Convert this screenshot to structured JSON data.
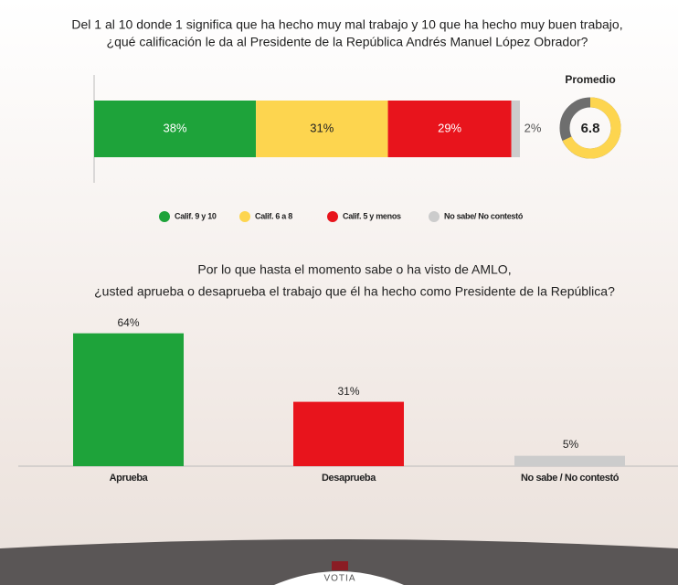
{
  "chart_data": [
    {
      "type": "stacked_bar",
      "title": [
        "Del 1 al 10 donde 1 significa que ha hecho muy mal trabajo y 10 que ha hecho muy buen trabajo,",
        "¿qué calificación le da al Presidente de la República Andrés Manuel López Obrador?"
      ],
      "categories": [
        null
      ],
      "xlim": [
        0,
        100
      ],
      "series": [
        {
          "name": "Calif. 9 y 10",
          "color": "#1ea33a",
          "values": [
            38
          ],
          "value_labels": [
            "38%"
          ]
        },
        {
          "name": "Calif. 6 a 8",
          "color": "#fdd54f",
          "values": [
            31
          ],
          "value_labels": [
            "31%"
          ]
        },
        {
          "name": "Calif. 5 y menos",
          "color": "#e8141c",
          "values": [
            29
          ],
          "value_labels": [
            "29%"
          ]
        },
        {
          "name": "No sabe/ No contestó",
          "color": "#cccccc",
          "values": [
            2
          ],
          "value_labels": [
            "2%"
          ]
        }
      ]
    },
    {
      "type": "donut",
      "title": "Promedio",
      "value": 6.8,
      "ylim": [
        0,
        10
      ],
      "color": "#fdd54f"
    },
    {
      "type": "bar",
      "title": [
        "Por lo que hasta el momento sabe o ha visto de AMLO,",
        "¿usted aprueba o desaprueba el trabajo que él ha hecho como Presidente de la República?"
      ],
      "categories": [
        "Aprueba",
        "Desaprueba",
        "No sabe /  No contestó"
      ],
      "values": [
        64,
        31,
        5
      ],
      "value_labels": [
        "64%",
        "31%",
        "5%"
      ],
      "colors": [
        "#1ea33a",
        "#e8141c",
        "#cccccc"
      ],
      "ylim": [
        0,
        70
      ]
    }
  ],
  "footer": {
    "logo": "VOTIA"
  }
}
